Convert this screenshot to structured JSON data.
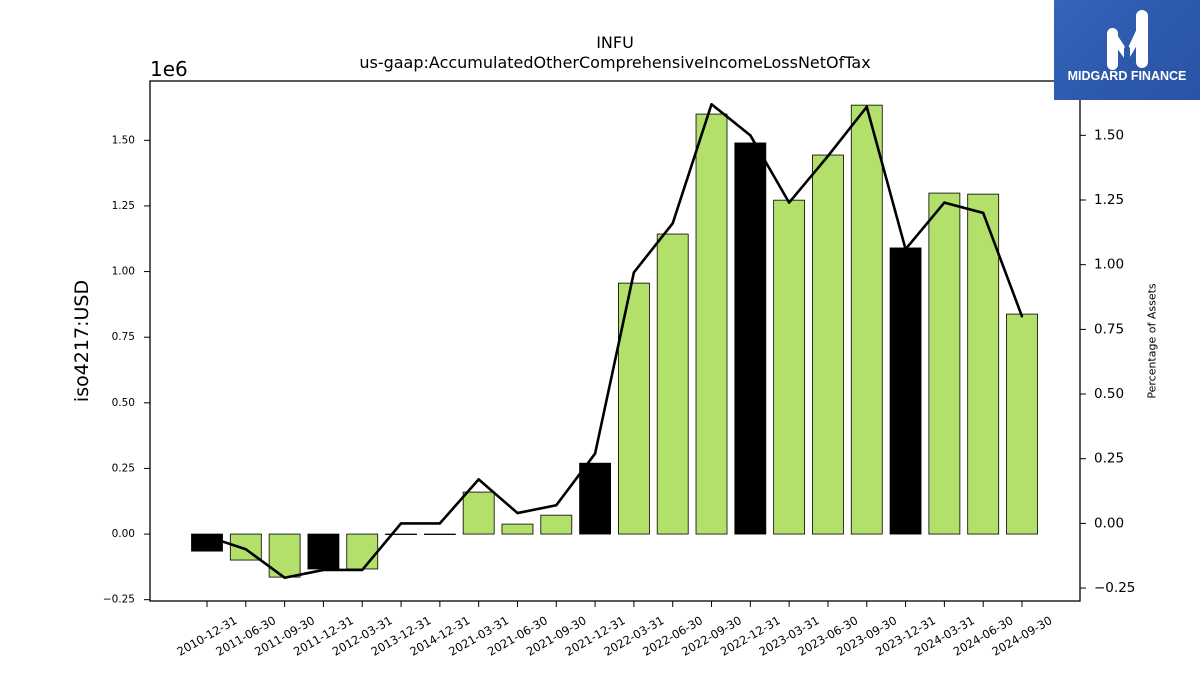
{
  "logo": {
    "text": "MIDGARD FINANCE",
    "icon": "midgard-finance-logo-icon",
    "color": "#2d59ad"
  },
  "chart_data": {
    "type": "bar",
    "title": "INFU",
    "subtitle": "us-gaap:AccumulatedOtherComprehensiveIncomeLossNetOfTax",
    "xlabel": "",
    "ylabel": "iso4217:USD",
    "y_offset_text": "1e6",
    "y2label": "Percentage of Assets",
    "categories": [
      "2010-12-31",
      "2011-06-30",
      "2011-09-30",
      "2011-12-31",
      "2012-03-31",
      "2013-12-31",
      "2014-12-31",
      "2021-03-31",
      "2021-06-30",
      "2021-09-30",
      "2021-12-31",
      "2022-03-31",
      "2022-06-30",
      "2022-09-30",
      "2022-12-31",
      "2023-03-31",
      "2023-06-30",
      "2023-09-30",
      "2023-12-31",
      "2024-03-31",
      "2024-06-30",
      "2024-09-30"
    ],
    "series": [
      {
        "type": "bar",
        "axis": "left",
        "values": [
          -65000,
          -99000,
          -164000,
          -133000,
          -133000,
          0,
          0,
          160000,
          38000,
          72000,
          270000,
          956000,
          1143000,
          1600000,
          1490000,
          1272000,
          1444000,
          1634000,
          1090000,
          1299000,
          1295000,
          838000
        ]
      },
      {
        "type": "line",
        "axis": "right",
        "color": "#000000",
        "values": [
          -0.05,
          -0.1,
          -0.21,
          -0.18,
          -0.18,
          0.0,
          0.0,
          0.17,
          0.04,
          0.07,
          0.27,
          0.97,
          1.16,
          1.62,
          1.5,
          1.24,
          1.42,
          1.61,
          1.06,
          1.24,
          1.2,
          0.8
        ]
      }
    ],
    "bar_colors": [
      "#000000",
      "#b3df6b",
      "#b3df6b",
      "#000000",
      "#b3df6b",
      "#000000",
      "#000000",
      "#b3df6b",
      "#b3df6b",
      "#b3df6b",
      "#000000",
      "#b3df6b",
      "#b3df6b",
      "#b3df6b",
      "#000000",
      "#b3df6b",
      "#b3df6b",
      "#b3df6b",
      "#000000",
      "#b3df6b",
      "#b3df6b",
      "#b3df6b"
    ],
    "ylim": [
      -255000,
      1726000
    ],
    "y2lim": [
      -0.3,
      1.71
    ],
    "yticks": [
      -250000,
      0,
      250000,
      500000,
      750000,
      1000000,
      1250000,
      1500000
    ],
    "ytick_labels": [
      "−0.25",
      "0.00",
      "0.25",
      "0.50",
      "0.75",
      "1.00",
      "1.25",
      "1.50"
    ],
    "y2ticks": [
      -0.25,
      0,
      0.25,
      0.5,
      0.75,
      1.0,
      1.25,
      1.5
    ],
    "y2tick_labels": [
      "−0.25",
      "0.00",
      "0.25",
      "0.50",
      "0.75",
      "1.00",
      "1.25",
      "1.50"
    ],
    "grid": false
  }
}
